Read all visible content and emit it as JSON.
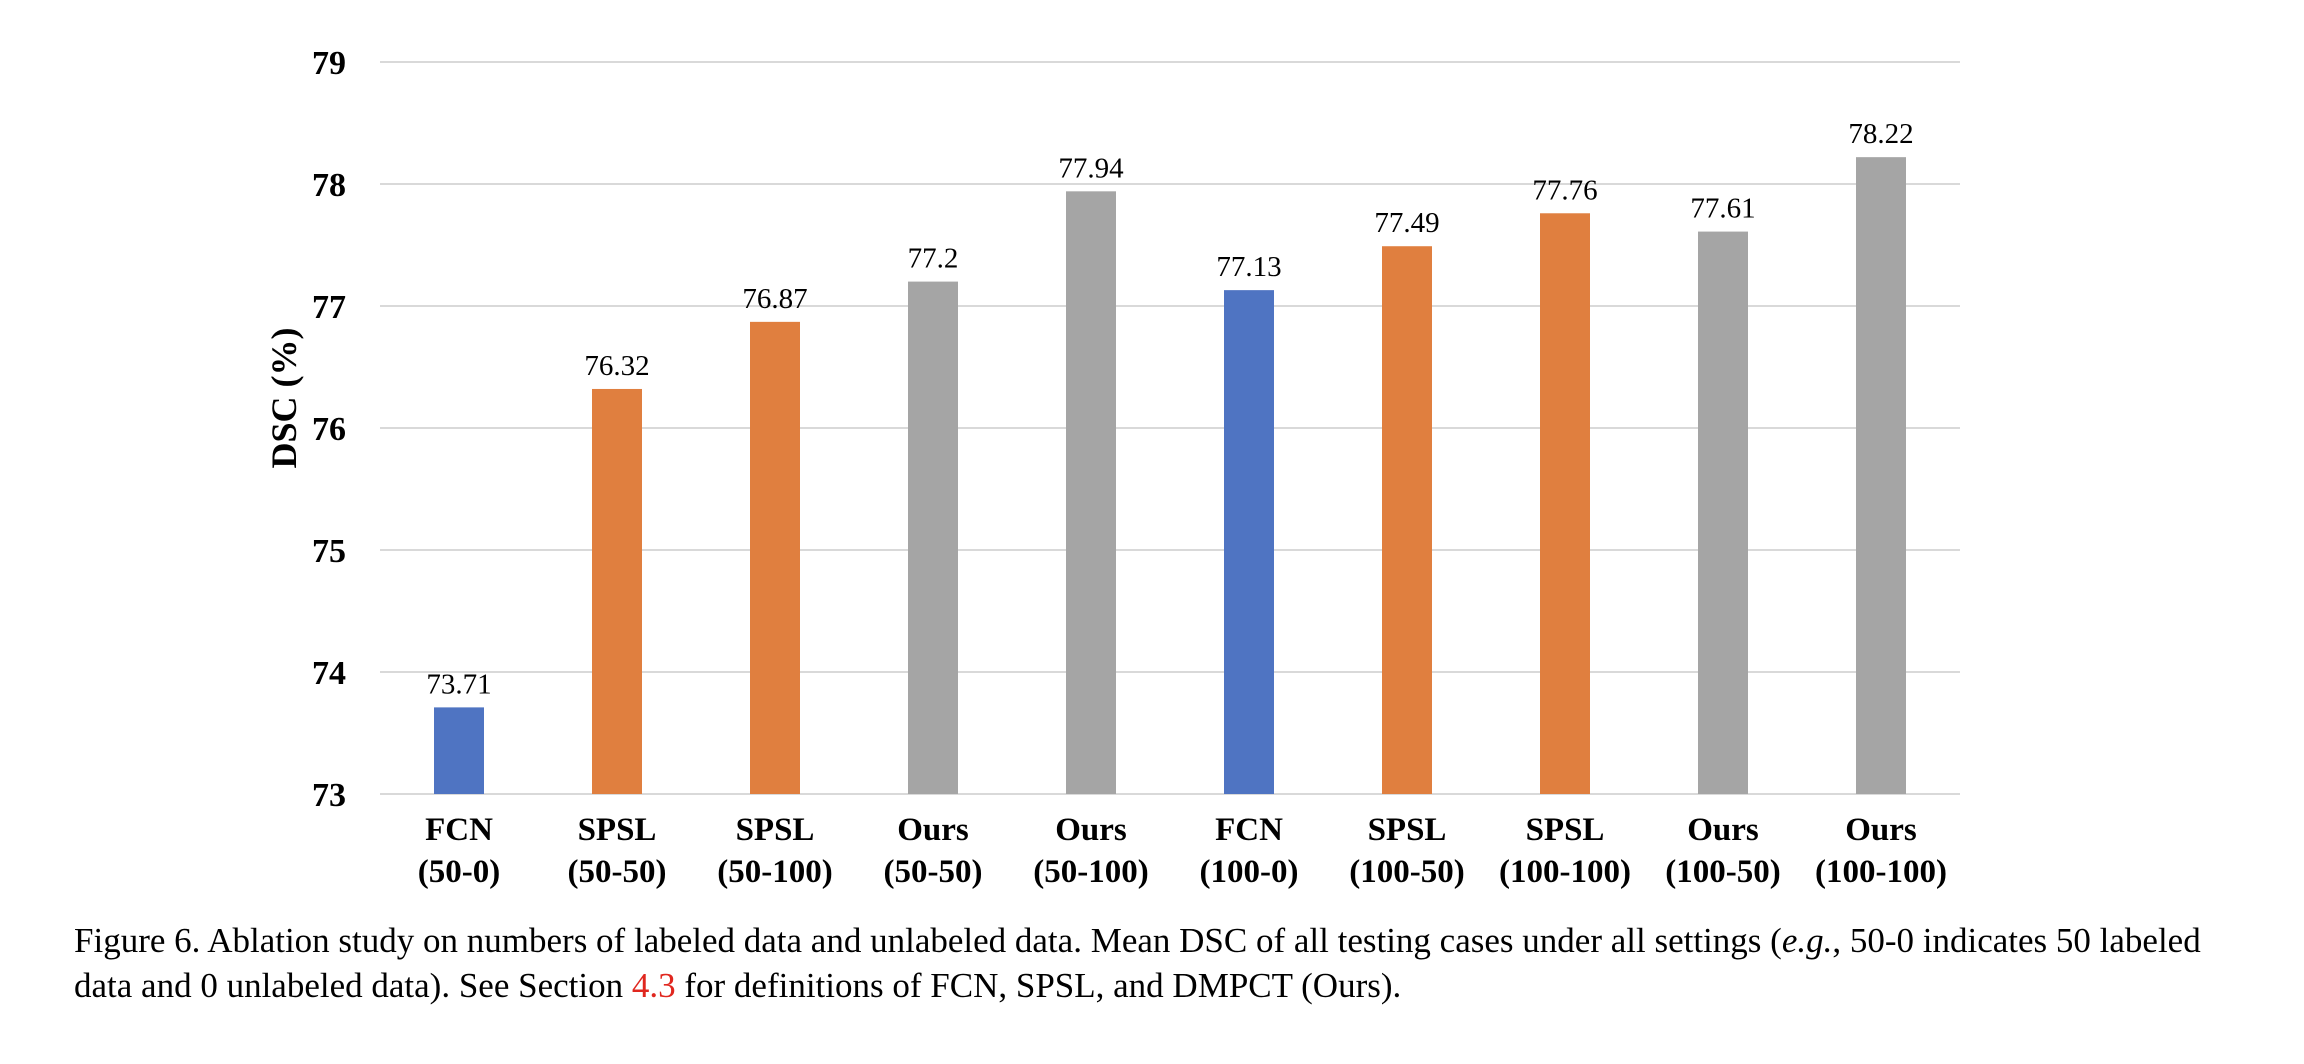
{
  "chart_data": {
    "type": "bar",
    "title": "",
    "xlabel": "",
    "ylabel": "DSC (%)",
    "ylim": [
      73,
      79
    ],
    "yticks": [
      "73",
      "74",
      "75",
      "76",
      "77",
      "78",
      "79"
    ],
    "grid": true,
    "legend": "none",
    "categories": [
      {
        "name": "FCN",
        "setting": "(50-0)"
      },
      {
        "name": "SPSL",
        "setting": "(50-50)"
      },
      {
        "name": "SPSL",
        "setting": "(50-100)"
      },
      {
        "name": "Ours",
        "setting": "(50-50)"
      },
      {
        "name": "Ours",
        "setting": "(50-100)"
      },
      {
        "name": "FCN",
        "setting": "(100-0)"
      },
      {
        "name": "SPSL",
        "setting": "(100-50)"
      },
      {
        "name": "SPSL",
        "setting": "(100-100)"
      },
      {
        "name": "Ours",
        "setting": "(100-50)"
      },
      {
        "name": "Ours",
        "setting": "(100-100)"
      }
    ],
    "values": [
      73.71,
      76.32,
      76.87,
      77.2,
      77.94,
      77.13,
      77.49,
      77.76,
      77.61,
      78.22
    ],
    "value_labels": [
      "73.71",
      "76.32",
      "76.87",
      "77.2",
      "77.94",
      "77.13",
      "77.49",
      "77.76",
      "77.61",
      "78.22"
    ],
    "colors": {
      "FCN": "#4f74c2",
      "SPSL": "#e07f3f",
      "Ours": "#a5a5a5",
      "grid": "#d9d9d9"
    }
  },
  "caption": {
    "prefix": "Figure 6. Ablation study on numbers of labeled data and unlabeled data.  Mean DSC of all testing cases under all settings (",
    "eg": "e.g.",
    "middle": ", 50-0 indicates 50 labeled data and 0 unlabeled data). See Section ",
    "section_ref": "4.3",
    "suffix": " for definitions of FCN, SPSL, and DMPCT (Ours)."
  }
}
